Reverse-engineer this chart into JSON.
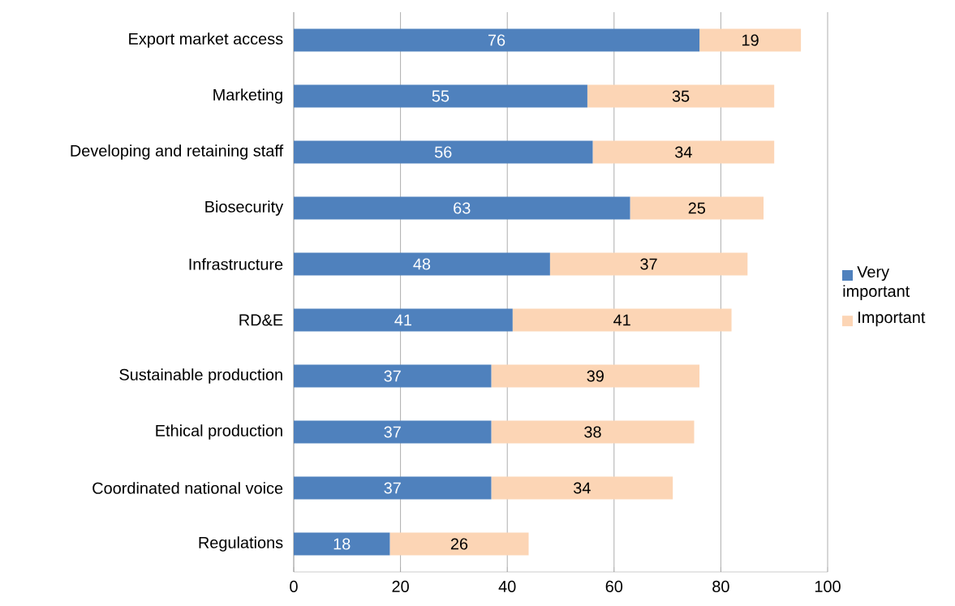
{
  "chart_data": {
    "type": "bar",
    "orientation": "horizontal",
    "stacked": true,
    "categories": [
      "Export market access",
      "Marketing",
      "Developing and retaining staff",
      "Biosecurity",
      "Infrastructure",
      "RD&E",
      "Sustainable production",
      "Ethical production",
      "Coordinated national voice",
      "Regulations"
    ],
    "series": [
      {
        "name": "Very important",
        "color": "#4f81bd",
        "values": [
          76,
          55,
          56,
          63,
          48,
          41,
          37,
          37,
          37,
          18
        ]
      },
      {
        "name": "Important",
        "color": "#fcd5b5",
        "values": [
          19,
          35,
          34,
          25,
          37,
          41,
          39,
          38,
          34,
          26
        ]
      }
    ],
    "xlim": [
      0,
      100
    ],
    "xticks": [
      0,
      20,
      40,
      60,
      80,
      100
    ],
    "grid": "x",
    "legend": "right",
    "data_labels": true
  }
}
